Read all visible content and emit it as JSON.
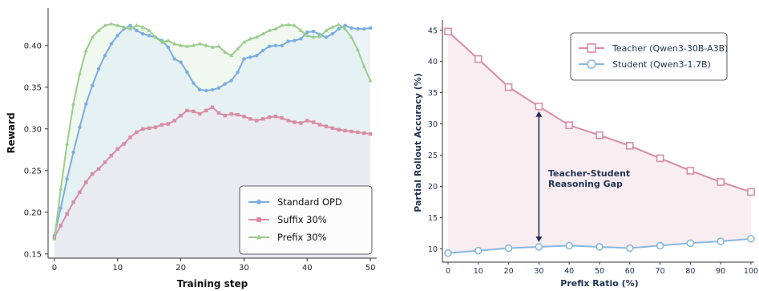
{
  "chart_data": [
    {
      "type": "line",
      "xlabel": "Training step",
      "ylabel": "Reward",
      "xlim": [
        -1,
        51
      ],
      "ylim": [
        0.145,
        0.445
      ],
      "xticks": [
        0,
        10,
        20,
        30,
        40,
        50
      ],
      "yticks": [
        0.15,
        0.2,
        0.25,
        0.3,
        0.35,
        0.4
      ],
      "ytick_labels": [
        "0.15",
        "0.20",
        "0.25",
        "0.30",
        "0.35",
        "0.40"
      ],
      "legend_position": "bottom-right",
      "x": [
        0,
        1,
        2,
        3,
        4,
        5,
        6,
        7,
        8,
        9,
        10,
        11,
        12,
        13,
        14,
        15,
        16,
        17,
        18,
        19,
        20,
        21,
        22,
        23,
        24,
        25,
        26,
        27,
        28,
        29,
        30,
        31,
        32,
        33,
        34,
        35,
        36,
        37,
        38,
        39,
        40,
        41,
        42,
        43,
        44,
        45,
        46,
        47,
        48,
        49,
        50
      ],
      "series": [
        {
          "name": "Standard OPD",
          "color": "#7aaee0",
          "marker": "circle",
          "values": [
            0.172,
            0.205,
            0.24,
            0.272,
            0.302,
            0.33,
            0.352,
            0.372,
            0.388,
            0.402,
            0.412,
            0.42,
            0.424,
            0.418,
            0.414,
            0.412,
            0.41,
            0.406,
            0.398,
            0.384,
            0.38,
            0.368,
            0.355,
            0.347,
            0.346,
            0.347,
            0.349,
            0.354,
            0.358,
            0.368,
            0.384,
            0.386,
            0.388,
            0.394,
            0.399,
            0.4,
            0.4,
            0.405,
            0.406,
            0.408,
            0.416,
            0.417,
            0.413,
            0.41,
            0.414,
            0.42,
            0.424,
            0.421,
            0.42,
            0.42,
            0.421
          ]
        },
        {
          "name": "Suffix 30%",
          "color": "#d98ca6",
          "marker": "square",
          "values": [
            0.17,
            0.184,
            0.198,
            0.212,
            0.224,
            0.236,
            0.246,
            0.252,
            0.26,
            0.268,
            0.276,
            0.282,
            0.29,
            0.296,
            0.3,
            0.301,
            0.302,
            0.305,
            0.306,
            0.31,
            0.316,
            0.322,
            0.321,
            0.318,
            0.322,
            0.326,
            0.319,
            0.316,
            0.318,
            0.317,
            0.315,
            0.312,
            0.31,
            0.312,
            0.314,
            0.315,
            0.313,
            0.31,
            0.308,
            0.307,
            0.31,
            0.308,
            0.305,
            0.303,
            0.301,
            0.299,
            0.298,
            0.297,
            0.296,
            0.295,
            0.294
          ]
        },
        {
          "name": "Prefix 30%",
          "color": "#9acd8c",
          "marker": "triangle",
          "values": [
            0.168,
            0.228,
            0.282,
            0.33,
            0.366,
            0.394,
            0.41,
            0.418,
            0.424,
            0.426,
            0.424,
            0.422,
            0.42,
            0.424,
            0.422,
            0.418,
            0.41,
            0.404,
            0.406,
            0.402,
            0.4,
            0.399,
            0.4,
            0.402,
            0.4,
            0.398,
            0.399,
            0.392,
            0.388,
            0.396,
            0.404,
            0.408,
            0.41,
            0.414,
            0.418,
            0.42,
            0.424,
            0.425,
            0.424,
            0.418,
            0.412,
            0.41,
            0.411,
            0.418,
            0.422,
            0.425,
            0.42,
            0.41,
            0.395,
            0.375,
            0.358
          ]
        }
      ]
    },
    {
      "type": "line",
      "xlabel": "Prefix Ratio (%)",
      "ylabel": "Partial Rollout Accuracy (%)",
      "xlim": [
        0,
        100
      ],
      "ylim": [
        8.5,
        46
      ],
      "xticks": [
        0,
        10,
        20,
        30,
        40,
        50,
        60,
        70,
        80,
        90,
        100
      ],
      "yticks": [
        10,
        15,
        20,
        25,
        30,
        35,
        40,
        45
      ],
      "legend_position": "top-right",
      "x": [
        0,
        10,
        20,
        30,
        40,
        50,
        60,
        70,
        80,
        90,
        100
      ],
      "series": [
        {
          "name": "Teacher (Qwen3-30B-A3B)",
          "color": "#d98ca6",
          "marker": "square",
          "values": [
            44.8,
            40.4,
            35.9,
            32.8,
            29.8,
            28.2,
            26.5,
            24.5,
            22.5,
            20.7,
            19.1
          ]
        },
        {
          "name": "Student (Qwen3-1.7B)",
          "color": "#86b8e0",
          "marker": "circle",
          "values": [
            9.3,
            9.7,
            10.1,
            10.3,
            10.5,
            10.3,
            10.1,
            10.5,
            10.9,
            11.2,
            11.6
          ]
        }
      ],
      "annotation": {
        "text_line1": "Teacher-Student",
        "text_line2": "Reasoning Gap",
        "x": 30,
        "y_from": 10.3,
        "y_to": 32.8
      }
    }
  ]
}
